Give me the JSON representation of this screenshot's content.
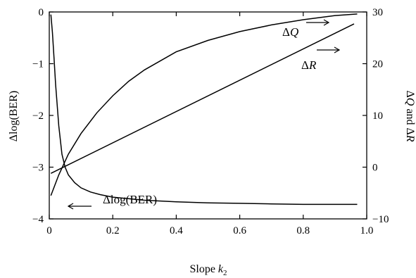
{
  "chart_data": {
    "type": "line",
    "x_axis": {
      "label_prefix": "Slope ",
      "label_var": "k",
      "label_sub": "2",
      "range": [
        0,
        1.0
      ],
      "ticks": [
        0,
        0.2,
        0.4,
        0.6,
        0.8,
        1.0
      ],
      "tick_labels": [
        "0",
        "0.2",
        "0.4",
        "0.6",
        "0.8",
        "1.0"
      ]
    },
    "y_left": {
      "label": "Δlog(BER)",
      "range": [
        -4,
        0
      ],
      "ticks": [
        0,
        -1,
        -2,
        -3,
        -4
      ],
      "tick_labels": [
        "0",
        "−1",
        "−2",
        "−3",
        "−4"
      ]
    },
    "y_right": {
      "label_parts": [
        "Δ",
        "Q",
        " and Δ",
        "R"
      ],
      "range": [
        -10,
        30
      ],
      "ticks": [
        30,
        20,
        10,
        0,
        -10
      ],
      "tick_labels": [
        "30",
        "20",
        "10",
        "0",
        "−10"
      ]
    },
    "series": [
      {
        "name": "Δlog(BER)",
        "axis": "left",
        "x": [
          0.005,
          0.01,
          0.015,
          0.02,
          0.03,
          0.04,
          0.05,
          0.06,
          0.08,
          0.1,
          0.13,
          0.16,
          0.2,
          0.3,
          0.4,
          0.5,
          0.6,
          0.7,
          0.8,
          0.9,
          0.97
        ],
        "y": [
          -0.05,
          -0.4,
          -0.9,
          -1.4,
          -2.2,
          -2.75,
          -3.0,
          -3.15,
          -3.3,
          -3.4,
          -3.48,
          -3.53,
          -3.58,
          -3.64,
          -3.67,
          -3.69,
          -3.7,
          -3.71,
          -3.72,
          -3.72,
          -3.72
        ]
      },
      {
        "name": "ΔQ",
        "axis": "right",
        "x": [
          0.005,
          0.03,
          0.06,
          0.1,
          0.15,
          0.2,
          0.25,
          0.3,
          0.4,
          0.5,
          0.6,
          0.7,
          0.8,
          0.9,
          0.97
        ],
        "y": [
          -5.5,
          -1.5,
          2.5,
          6.5,
          10.5,
          13.8,
          16.6,
          18.8,
          22.3,
          24.5,
          26.2,
          27.5,
          28.5,
          29.3,
          29.6
        ]
      },
      {
        "name": "ΔR",
        "axis": "right",
        "x": [
          0.005,
          0.96
        ],
        "y": [
          -1.2,
          27.7
        ]
      }
    ],
    "annotations": [
      {
        "text_parts": [
          "Δ",
          "Q"
        ],
        "series": "ΔQ",
        "arrow_dir": "right"
      },
      {
        "text_parts": [
          "Δ",
          "R"
        ],
        "series": "ΔR",
        "arrow_dir": "right"
      },
      {
        "text": "Δlog(BER)",
        "series": "Δlog(BER)",
        "arrow_dir": "left"
      }
    ],
    "grid": false
  }
}
